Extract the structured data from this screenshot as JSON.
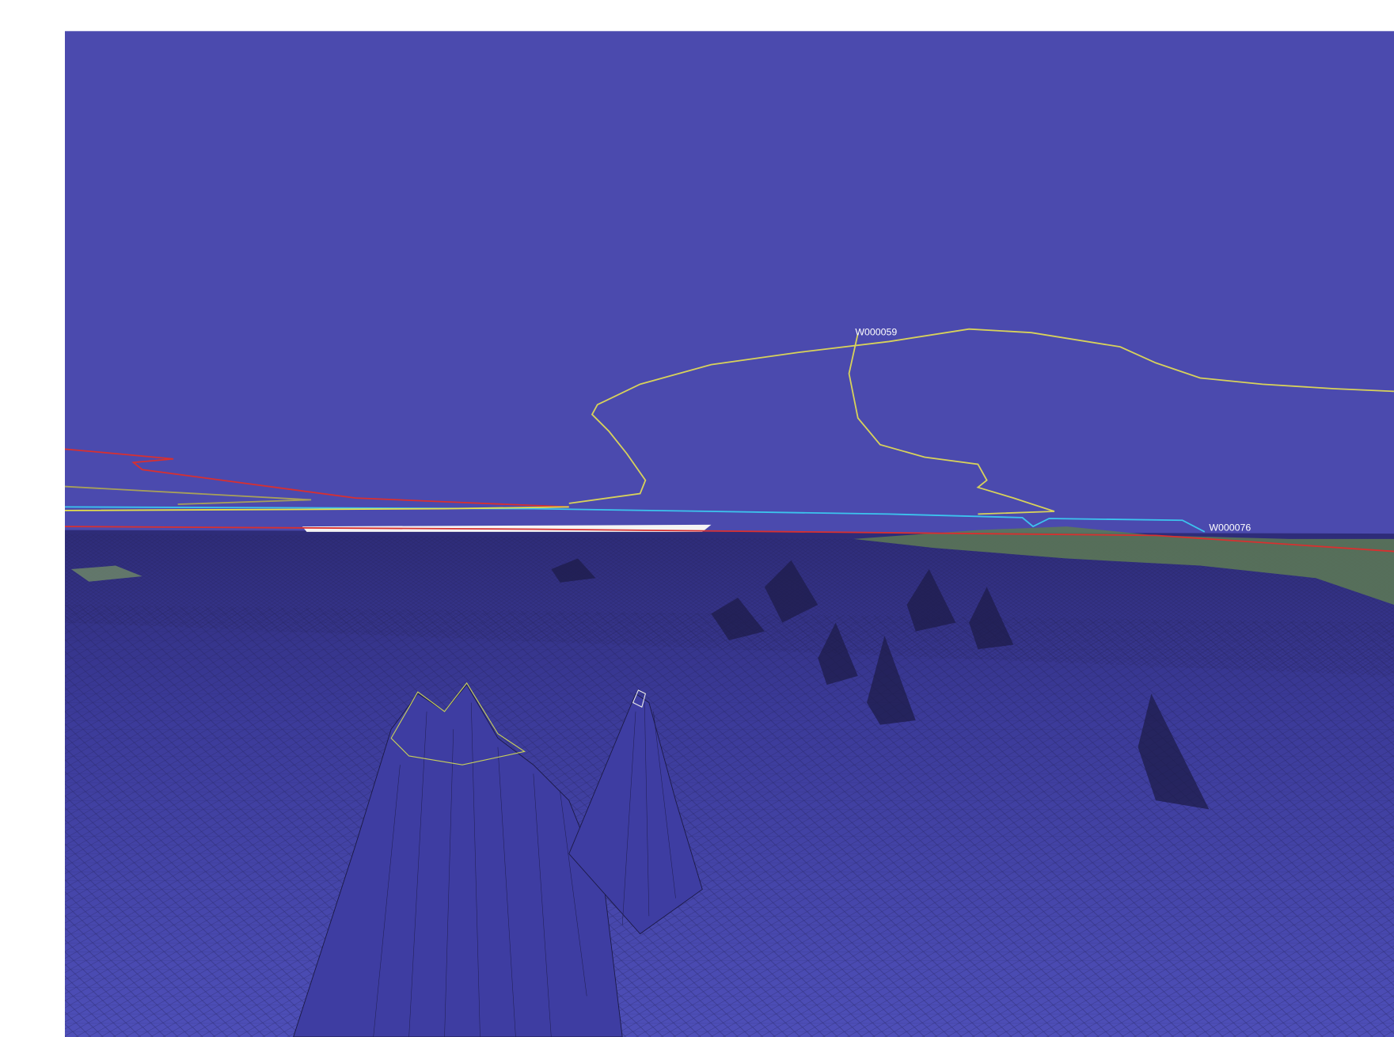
{
  "waypoints": [
    "W000059",
    "W000076"
  ]
}
